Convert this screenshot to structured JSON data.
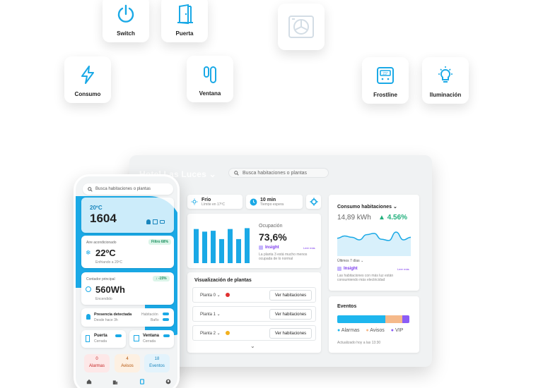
{
  "tiles": {
    "switch": "Switch",
    "puerta": "Puerta",
    "consumo": "Consumo",
    "ventana": "Ventana",
    "frostline": "Frostline",
    "iluminacion": "Iluminación"
  },
  "dashboard": {
    "brand": "Hotel Las Luces",
    "search_placeholder": "Busca habitaciones o plantas",
    "status": [
      {
        "title": "Frío",
        "sub": "Límite en 17ºC"
      },
      {
        "title": "10 min",
        "sub": "Tiempo espera"
      }
    ],
    "occupancy": {
      "label": "Ocupación",
      "value": "73,6%",
      "insight": "Insight",
      "more": "Leer más",
      "note": "La planta 3 está mucho menos ocupada de lo normal",
      "bars": [
        0.78,
        0.72,
        0.74,
        0.55,
        0.78,
        0.55,
        0.8
      ]
    },
    "consumption": {
      "title": "Consumo habitaciones",
      "value": "14,89 kWh",
      "delta": "4.56%",
      "range": "Últimos 7 días",
      "insight": "Insight",
      "more": "Leer más",
      "note": "Las habitaciones con más luz están consumiendo más electricidad",
      "line": [
        0.55,
        0.62,
        0.58,
        0.5,
        0.66,
        0.7,
        0.52,
        0.48,
        0.74,
        0.5,
        0.58
      ]
    },
    "plants": {
      "title": "Visualización de plantas",
      "rows": [
        {
          "name": "Planta 0",
          "action": "Ver habitaciones",
          "flag": "alarm"
        },
        {
          "name": "Planta 1",
          "action": "Ver habitaciones",
          "flag": ""
        },
        {
          "name": "Planta 2",
          "action": "Ver habitaciones",
          "flag": "warning"
        }
      ]
    },
    "events": {
      "title": "Eventos",
      "legend": [
        "Alarmas",
        "Avisos",
        "VIP"
      ],
      "segments": [
        0.67,
        0.23,
        0.1
      ],
      "colors": [
        "#1eb6ee",
        "#f5b98a",
        "#8b5cf6"
      ],
      "updated": "Actualizado hoy a las 13:30"
    }
  },
  "phone": {
    "search_placeholder": "Busca habitaciones o plantas",
    "temp": "20ºC",
    "room": "1604",
    "ac": {
      "title": "Aire acondicionado",
      "badge": "Filtro 68%",
      "value": "22ºC",
      "sub": "Enfriando a 20ºC"
    },
    "meter": {
      "title": "Contador principal",
      "badge": "↓ -15%",
      "value": "560Wh",
      "sub": "Encendido"
    },
    "presence": {
      "title": "Presencia detectada",
      "sub": "Desde hace 3h",
      "r1": "Habitación",
      "r2": "Baño"
    },
    "door": {
      "title": "Puerta",
      "sub": "Cerrada"
    },
    "window": {
      "title": "Ventana",
      "sub": "Cerrada"
    },
    "counters": [
      {
        "value": "0",
        "label": "Alarmas"
      },
      {
        "value": "4",
        "label": "Avisos"
      },
      {
        "value": "18",
        "label": "Eventos"
      }
    ]
  },
  "colors": {
    "accent": "#1aa9e6",
    "purple": "#8b5cf6",
    "green": "#22b07d",
    "red": "#e03131",
    "amber": "#f2b01e"
  }
}
